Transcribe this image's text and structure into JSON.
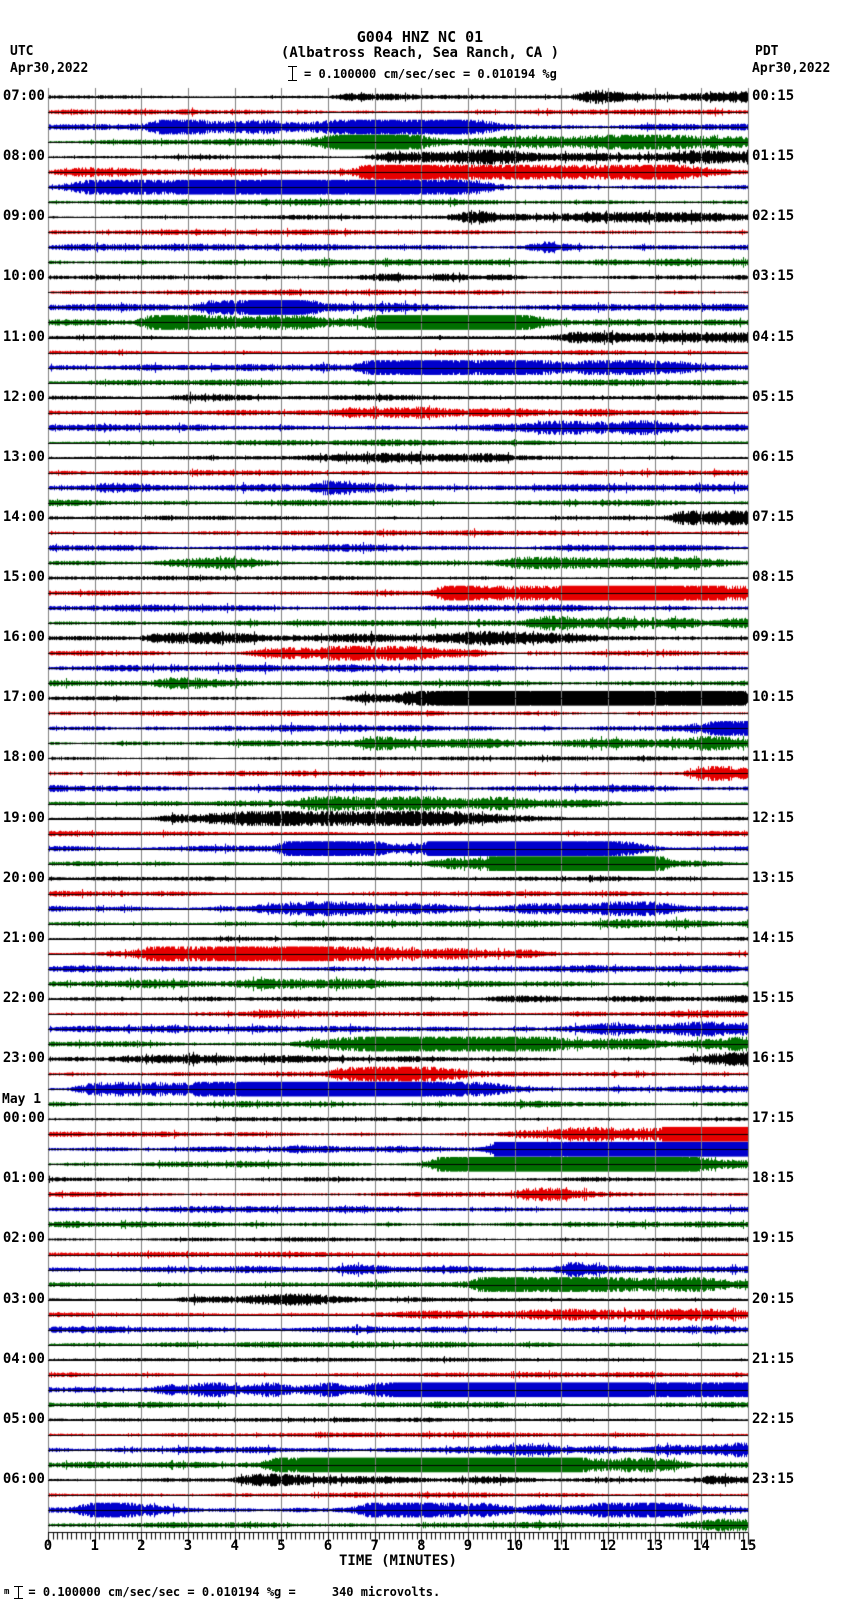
{
  "header": {
    "title": "G004 HNZ NC 01",
    "subtitle": "(Albatross Reach, Sea Ranch, CA )",
    "scale_label": "= 0.100000 cm/sec/sec = 0.010194 %g",
    "left_timezone": "UTC",
    "left_date": "Apr30,2022",
    "right_timezone": "PDT",
    "right_date": "Apr30,2022"
  },
  "footer": {
    "prefix": "m",
    "note": "= 0.100000 cm/sec/sec = 0.010194 %g =     340 microvolts."
  },
  "axis": {
    "label": "TIME (MINUTES)",
    "tick_labels": [
      "0",
      "1",
      "2",
      "3",
      "4",
      "5",
      "6",
      "7",
      "8",
      "9",
      "10",
      "11",
      "12",
      "13",
      "14",
      "15"
    ]
  },
  "chart_data": {
    "type": "line",
    "kind": "helicorder-seismogram",
    "station": "G004 HNZ NC 01",
    "x_unit": "minutes",
    "x_range": [
      0,
      15
    ],
    "minutes_per_line": 15,
    "traces_per_hour": 4,
    "grid": "vertical gray line each minute",
    "grid_color": "#7f7f7f",
    "baseline_color": "#000000",
    "color_cycle": [
      "black",
      "red",
      "blue",
      "green"
    ],
    "trace_colors": {
      "black": "#000000",
      "red": "#e60000",
      "blue": "#0000cc",
      "green": "#006f00"
    },
    "description": "24 hour blocks, each with four 15-minute trace lines (black/red/blue/green) of continuous broadband noise with intermittent higher-amplitude bursts; waveform microstructure is procedurally rendered.",
    "rows": [
      {
        "utc": "07:00",
        "pdt": "00:15"
      },
      {
        "utc": "08:00",
        "pdt": "01:15"
      },
      {
        "utc": "09:00",
        "pdt": "02:15"
      },
      {
        "utc": "10:00",
        "pdt": "03:15"
      },
      {
        "utc": "11:00",
        "pdt": "04:15"
      },
      {
        "utc": "12:00",
        "pdt": "05:15"
      },
      {
        "utc": "13:00",
        "pdt": "06:15"
      },
      {
        "utc": "14:00",
        "pdt": "07:15"
      },
      {
        "utc": "15:00",
        "pdt": "08:15"
      },
      {
        "utc": "16:00",
        "pdt": "09:15"
      },
      {
        "utc": "17:00",
        "pdt": "10:15"
      },
      {
        "utc": "18:00",
        "pdt": "11:15"
      },
      {
        "utc": "19:00",
        "pdt": "12:15"
      },
      {
        "utc": "20:00",
        "pdt": "13:15"
      },
      {
        "utc": "21:00",
        "pdt": "14:15"
      },
      {
        "utc": "22:00",
        "pdt": "15:15"
      },
      {
        "utc": "23:00",
        "pdt": "16:15"
      },
      {
        "utc": "00:00",
        "pdt": "17:15",
        "date_note": "May 1"
      },
      {
        "utc": "01:00",
        "pdt": "18:15"
      },
      {
        "utc": "02:00",
        "pdt": "19:15"
      },
      {
        "utc": "03:00",
        "pdt": "20:15"
      },
      {
        "utc": "04:00",
        "pdt": "21:15"
      },
      {
        "utc": "05:00",
        "pdt": "22:15"
      },
      {
        "utc": "06:00",
        "pdt": "23:15"
      }
    ]
  }
}
